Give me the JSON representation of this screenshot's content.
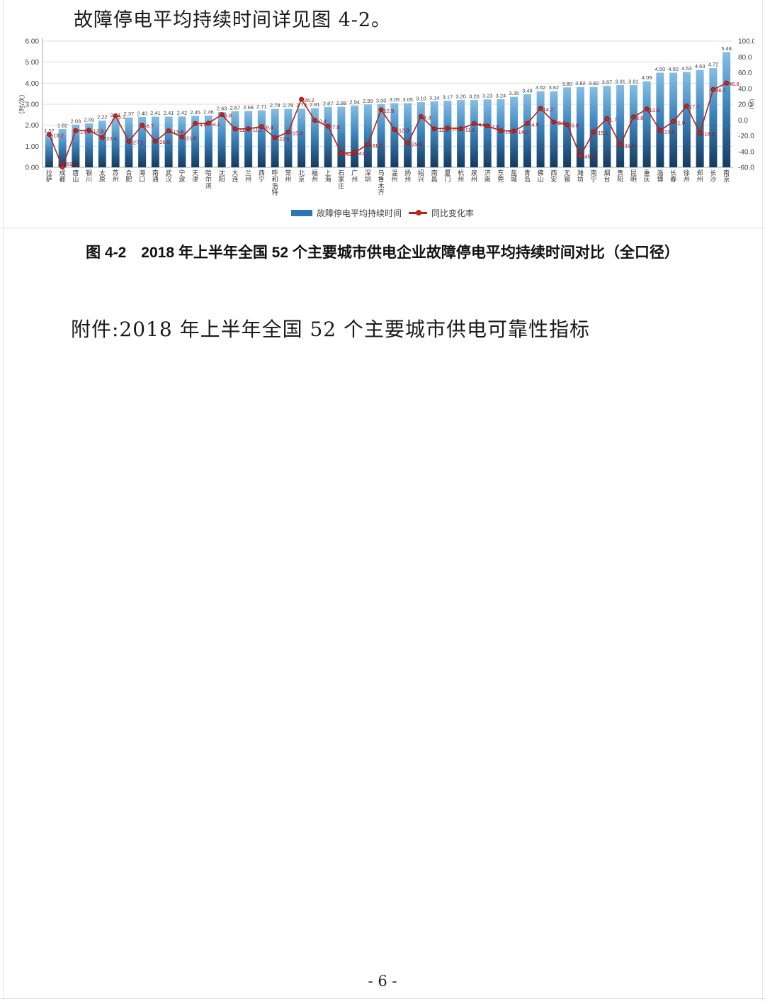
{
  "page": {
    "intro_text": "故障停电平均持续时间详见图 4-2。",
    "caption": "图 4-2　2018 年上半年全国 52 个主要城市供电企业故障停电平均持续时间对比（全口径）",
    "attachment_text": "附件:2018 年上半年全国 52 个主要城市供电可靠性指标",
    "page_number": "- 6 -"
  },
  "chart_data": {
    "type": "bar",
    "subtype": "bar+line dual axis",
    "categories": [
      "拉萨",
      "成都",
      "唐山",
      "银川",
      "太原",
      "苏州",
      "合肥",
      "海口",
      "南通",
      "武汉",
      "宁波",
      "天津",
      "哈尔滨",
      "沈阳",
      "大连",
      "兰州",
      "西宁",
      "呼和浩特",
      "常州",
      "北京",
      "福州",
      "上海",
      "石家庄",
      "广州",
      "深圳",
      "乌鲁木齐",
      "温州",
      "扬州",
      "绍兴",
      "南昌",
      "厦门",
      "杭州",
      "泉州",
      "济南",
      "东莞",
      "盐城",
      "青岛",
      "佛山",
      "西安",
      "无锡",
      "潍坊",
      "南宁",
      "烟台",
      "贵阳",
      "昆明",
      "重庆",
      "淄博",
      "长春",
      "徐州",
      "郑州",
      "长沙",
      "南京"
    ],
    "series": [
      {
        "name": "故障停电平均持续时间",
        "type": "bar",
        "axis": "left",
        "values": [
          1.57,
          1.82,
          2.03,
          2.09,
          2.22,
          2.31,
          2.37,
          2.4,
          2.41,
          2.41,
          2.42,
          2.45,
          2.46,
          2.63,
          2.67,
          2.68,
          2.71,
          2.78,
          2.78,
          2.79,
          2.81,
          2.87,
          2.88,
          2.94,
          2.99,
          3.0,
          3.05,
          3.05,
          3.1,
          3.14,
          3.17,
          3.2,
          3.2,
          3.23,
          3.24,
          3.35,
          3.48,
          3.62,
          3.62,
          3.8,
          3.82,
          3.82,
          3.87,
          3.91,
          3.91,
          4.09,
          4.5,
          4.5,
          4.53,
          4.63,
          4.72,
          5.48
        ]
      },
      {
        "name": "同比变化率",
        "type": "line",
        "axis": "right",
        "values": [
          -18.2,
          -59.5,
          -13.5,
          -12.9,
          -22.4,
          5.1,
          -27.1,
          -6.7,
          -26.9,
          -13.8,
          -21.6,
          -4.5,
          -4.1,
          6.8,
          -11.4,
          -11.1,
          -8.4,
          -22.6,
          -15.4,
          26.2,
          -0.4,
          -7.9,
          -42.2,
          -41.2,
          -31.1,
          12.9,
          -12.0,
          -29.6,
          4.3,
          -11.3,
          -10.1,
          -11.1,
          -4.6,
          -7.6,
          -13.7,
          -14.0,
          -4.5,
          14.7,
          -2.6,
          -5.8,
          -45.3,
          -15.1,
          1.7,
          -31.6,
          3.8,
          13.9,
          -13.5,
          -1.8,
          17.7,
          -16.5,
          38.7,
          46.8
        ]
      }
    ],
    "left_axis": {
      "title": "（时/次）",
      "min": 0,
      "max": 6,
      "step": 1,
      "tick_labels": [
        "0.00",
        "1.00",
        "2.00",
        "3.00",
        "4.00",
        "5.00",
        "6.00"
      ]
    },
    "right_axis": {
      "title": "（%）",
      "min": -60,
      "max": 100,
      "step": 20,
      "tick_labels": [
        "-60.0",
        "-40.0",
        "-20.0",
        "0.0",
        "20.0",
        "40.0",
        "60.0",
        "80.0",
        "100.0"
      ]
    },
    "legend": [
      "故障停电平均持续时间",
      "同比变化率"
    ],
    "legend_position": "bottom",
    "grid": true,
    "colors": {
      "bar_top": "#85bee4",
      "bar_mid": "#3e86be",
      "bar_bottom": "#153a60",
      "line": "#b02418",
      "marker_fill": "#c9241c",
      "marker_stroke": "#8e1a14",
      "bar_label": "#404040",
      "line_label": "#c00000",
      "grid": "#dddddd",
      "axis_line": "#a6a6a6",
      "axis_text": "#404040",
      "legend_bar_swatch": "#2e75b6"
    }
  }
}
